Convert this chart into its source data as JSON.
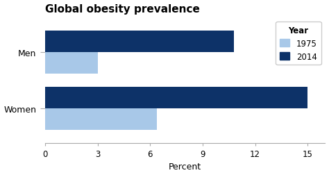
{
  "title": "Global obesity prevalence",
  "categories": [
    "Men",
    "Women"
  ],
  "year_1975": [
    3.0,
    6.4
  ],
  "year_2014": [
    10.8,
    15.0
  ],
  "color_1975": "#a8c8e8",
  "color_2014": "#0d3268",
  "xlabel": "Percent",
  "xticks": [
    0,
    3,
    6,
    9,
    12,
    15
  ],
  "xlim": [
    0,
    16
  ],
  "legend_title": "Year",
  "legend_labels": [
    "1975",
    "2014"
  ],
  "bar_height": 0.38,
  "title_fontsize": 11,
  "label_fontsize": 9,
  "tick_fontsize": 8.5,
  "background_color": "#ffffff"
}
